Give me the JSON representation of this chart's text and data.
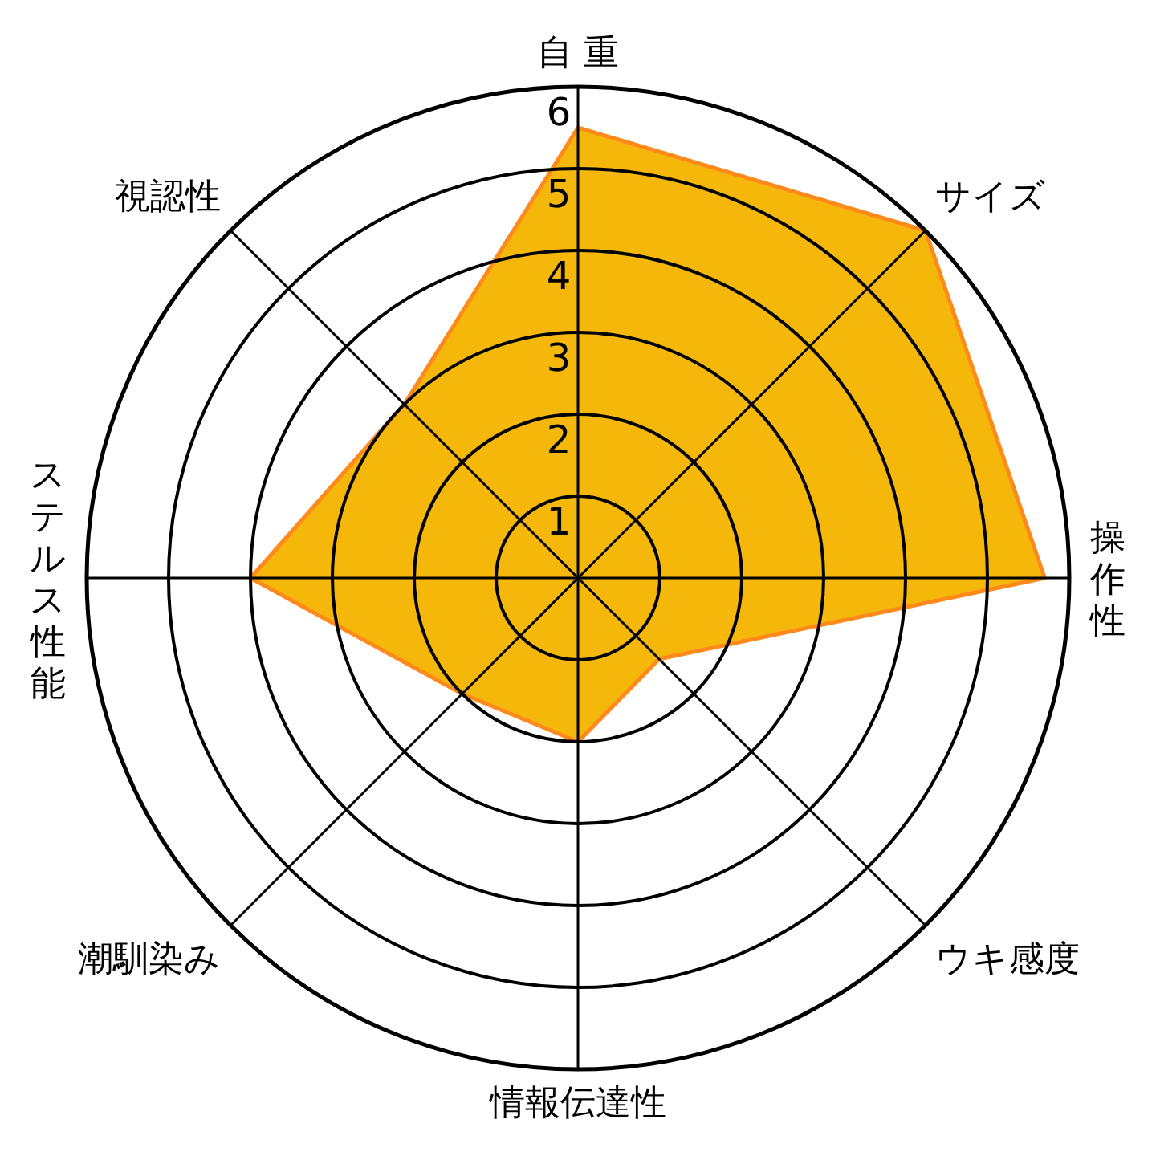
{
  "chart_data": {
    "type": "radar",
    "categories": [
      "自 重",
      "サイズ",
      "操作性",
      "ウキ感度",
      "情報伝達性",
      "潮馴染み",
      "ステルス性能",
      "視認性"
    ],
    "series": [
      {
        "color": "#f5b80a",
        "values": [
          5.5,
          6,
          5.7,
          1.4,
          2,
          2,
          4,
          3
        ]
      }
    ],
    "ylim": [
      0,
      6
    ],
    "yticks": [
      1,
      2,
      3,
      4,
      5,
      6
    ]
  }
}
